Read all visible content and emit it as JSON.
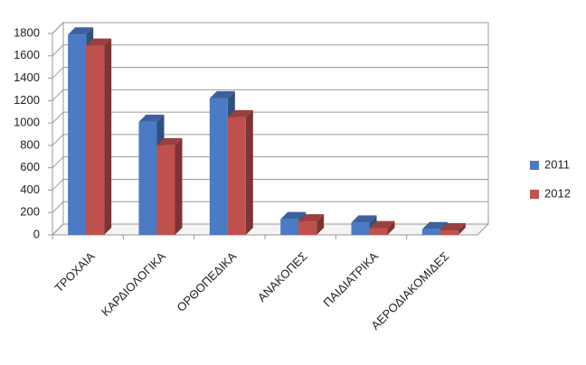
{
  "chart_data": {
    "type": "bar3d",
    "categories": [
      "ΤΡΟΧΑΙΑ",
      "ΚΑΡΔΙΟΛΟΓΙΚΑ",
      "ΟΡΘΟΠΕΔΙΚΑ",
      "ΑΝΑΚΟΠΕΣ",
      "ΠΑΙΔΙΑΤΡΙΚΑ",
      "ΑΕΡΟΔΙΑΚΟΜΙΔΕΣ"
    ],
    "series": [
      {
        "name": "2011",
        "color": "#4a7bc4",
        "values": [
          1790,
          1010,
          1220,
          140,
          110,
          50
        ]
      },
      {
        "name": "2012",
        "color": "#c0504d",
        "values": [
          1690,
          800,
          1050,
          120,
          60,
          40
        ]
      }
    ],
    "ylim": [
      0,
      1800
    ],
    "yticks": [
      0,
      200,
      400,
      600,
      800,
      1000,
      1200,
      1400,
      1600,
      1800
    ],
    "grid": true,
    "legend": "right"
  }
}
